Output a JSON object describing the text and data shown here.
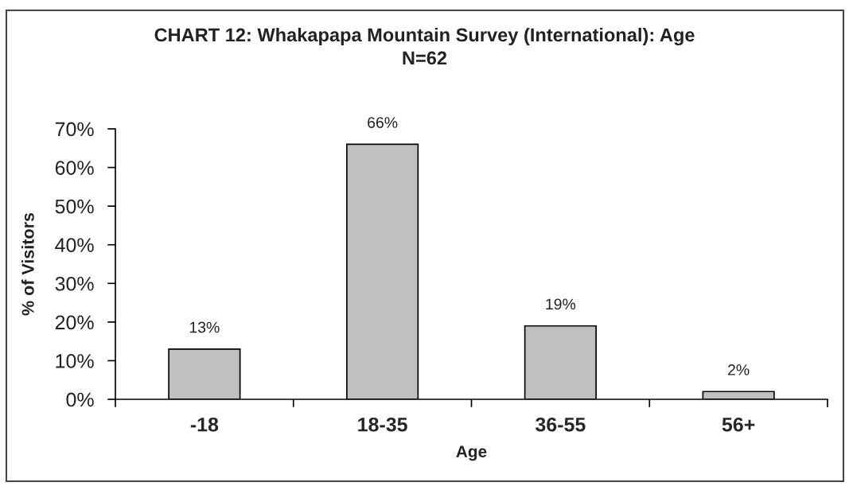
{
  "chart_data": {
    "type": "bar",
    "title": "CHART 12: Whakapapa Mountain Survey (International): Age",
    "subtitle": "N=62",
    "xlabel": "Age",
    "ylabel": "% of Visitors",
    "categories": [
      "-18",
      "18-35",
      "36-55",
      "56+"
    ],
    "values": [
      13,
      66,
      19,
      2
    ],
    "color": "#c0c0c0",
    "value_labels": [
      "13%",
      "66%",
      "19%",
      "2%"
    ],
    "ylim": [
      0,
      70
    ],
    "yticks": [
      {
        "value": 0,
        "label": "0%"
      },
      {
        "value": 10,
        "label": "10%"
      },
      {
        "value": 20,
        "label": "20%"
      },
      {
        "value": 30,
        "label": "30%"
      },
      {
        "value": 40,
        "label": "40%"
      },
      {
        "value": 50,
        "label": "50%"
      },
      {
        "value": 60,
        "label": "60%"
      },
      {
        "value": 70,
        "label": "70%"
      }
    ],
    "grid": false
  }
}
